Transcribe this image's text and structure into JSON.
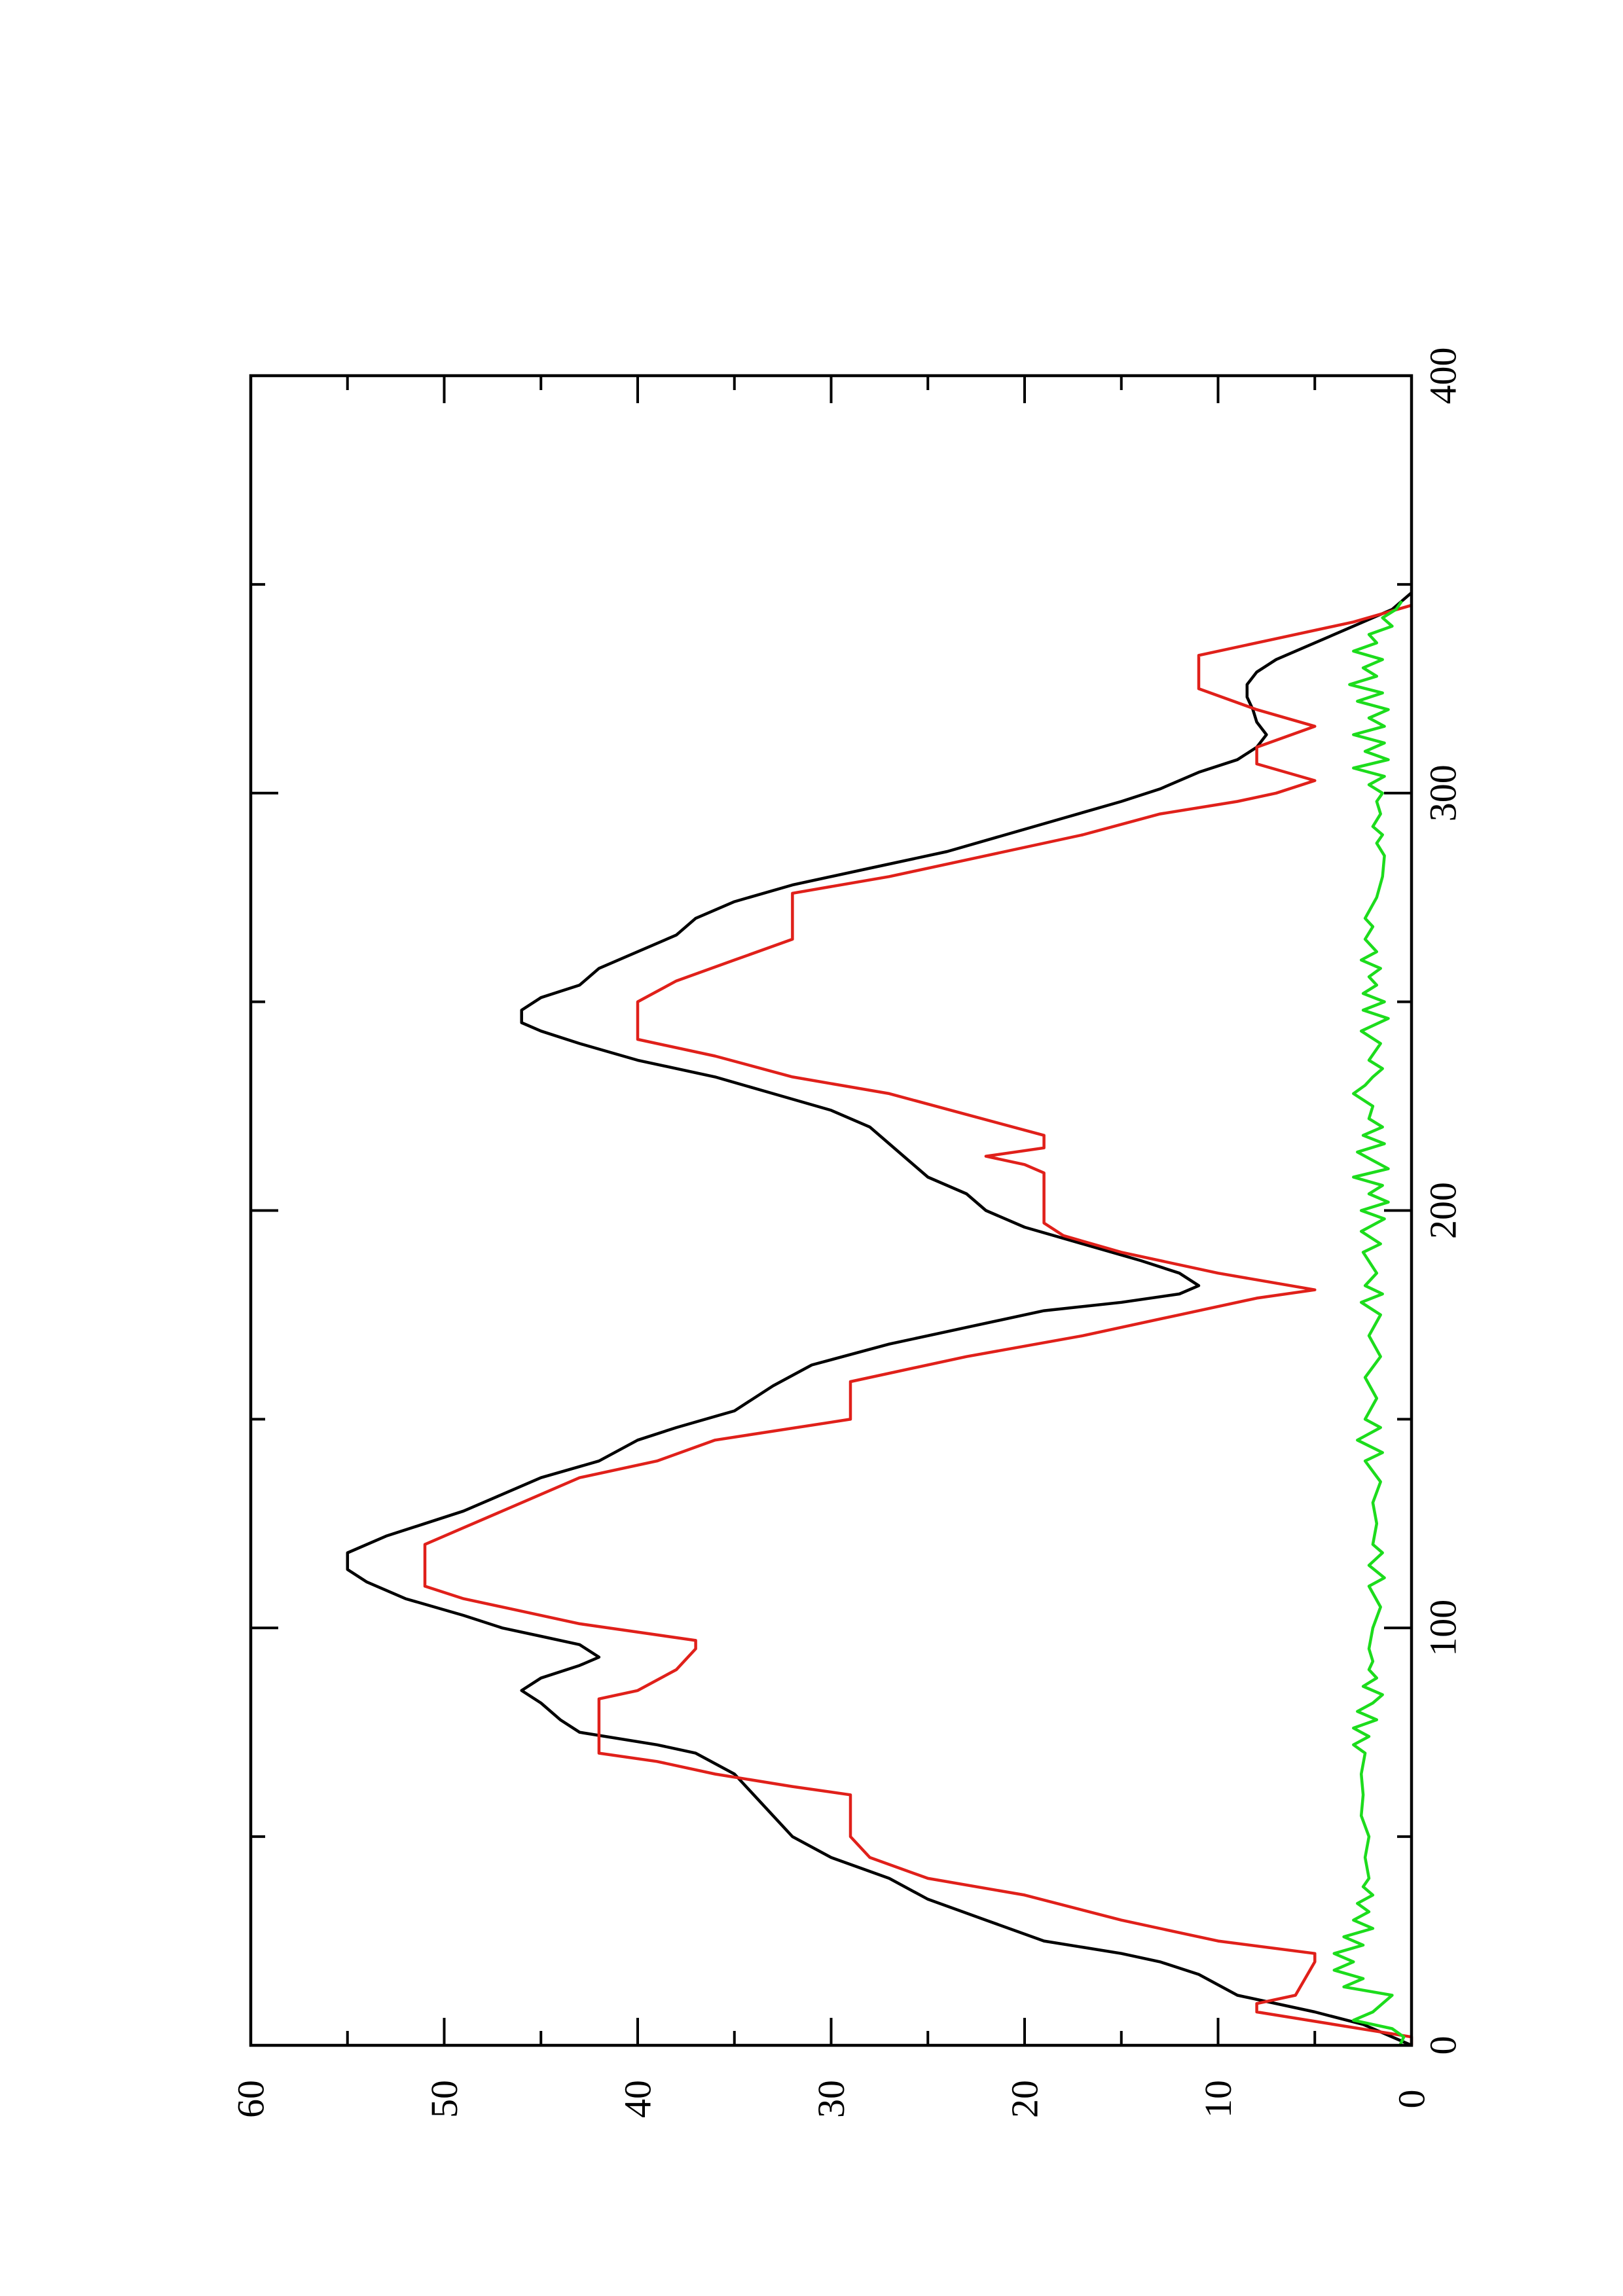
{
  "chart_data": {
    "type": "line",
    "title": "",
    "xlabel": "",
    "ylabel": "",
    "orientation": "rotated-90",
    "xlim": [
      0,
      400
    ],
    "ylim": [
      0,
      60
    ],
    "x_ticks": [
      "0",
      "100",
      "200",
      "300",
      "400"
    ],
    "y_ticks": [
      "0",
      "10",
      "20",
      "30",
      "40",
      "50",
      "60"
    ],
    "grid": false,
    "legend": "none",
    "series": [
      {
        "color": "#000000",
        "points": [
          [
            0,
            0
          ],
          [
            5,
            2.5
          ],
          [
            8,
            5
          ],
          [
            12,
            9
          ],
          [
            17,
            11
          ],
          [
            20,
            13
          ],
          [
            22,
            15
          ],
          [
            25,
            19
          ],
          [
            30,
            22
          ],
          [
            35,
            25
          ],
          [
            40,
            27
          ],
          [
            45,
            30
          ],
          [
            50,
            32
          ],
          [
            55,
            33
          ],
          [
            60,
            34
          ],
          [
            65,
            35
          ],
          [
            70,
            37
          ],
          [
            72,
            39
          ],
          [
            75,
            43
          ],
          [
            78,
            44
          ],
          [
            82,
            45
          ],
          [
            85,
            46
          ],
          [
            88,
            45
          ],
          [
            91,
            43
          ],
          [
            93,
            42
          ],
          [
            96,
            43
          ],
          [
            98,
            45
          ],
          [
            100,
            47
          ],
          [
            103,
            49
          ],
          [
            107,
            52
          ],
          [
            111,
            54
          ],
          [
            114,
            55
          ],
          [
            118,
            55
          ],
          [
            122,
            53
          ],
          [
            125,
            51
          ],
          [
            128,
            49
          ],
          [
            132,
            47
          ],
          [
            136,
            45
          ],
          [
            140,
            42
          ],
          [
            145,
            40
          ],
          [
            148,
            38
          ],
          [
            152,
            35
          ],
          [
            158,
            33
          ],
          [
            163,
            31
          ],
          [
            168,
            27
          ],
          [
            172,
            23
          ],
          [
            176,
            19
          ],
          [
            178,
            15
          ],
          [
            180,
            12
          ],
          [
            182,
            11
          ],
          [
            185,
            12
          ],
          [
            188,
            14
          ],
          [
            192,
            17
          ],
          [
            196,
            20
          ],
          [
            200,
            22
          ],
          [
            204,
            23
          ],
          [
            208,
            25
          ],
          [
            212,
            26
          ],
          [
            216,
            27
          ],
          [
            220,
            28
          ],
          [
            224,
            30
          ],
          [
            228,
            33
          ],
          [
            232,
            36
          ],
          [
            236,
            40
          ],
          [
            240,
            43
          ],
          [
            243,
            45
          ],
          [
            245,
            46
          ],
          [
            248,
            46
          ],
          [
            251,
            45
          ],
          [
            254,
            43
          ],
          [
            258,
            42
          ],
          [
            262,
            40
          ],
          [
            266,
            38
          ],
          [
            270,
            37
          ],
          [
            274,
            35
          ],
          [
            278,
            32
          ],
          [
            282,
            28
          ],
          [
            286,
            24
          ],
          [
            290,
            21
          ],
          [
            294,
            18
          ],
          [
            298,
            15
          ],
          [
            301,
            13
          ],
          [
            305,
            11
          ],
          [
            308,
            9
          ],
          [
            311,
            8
          ],
          [
            314,
            7.5
          ],
          [
            317,
            8
          ],
          [
            320,
            8.2
          ],
          [
            323,
            8.5
          ],
          [
            326,
            8.5
          ],
          [
            329,
            8
          ],
          [
            332,
            7
          ],
          [
            336,
            5
          ],
          [
            340,
            3
          ],
          [
            344,
            1
          ],
          [
            348,
            0
          ]
        ]
      },
      {
        "color": "#e0201a",
        "points": [
          [
            0,
            0
          ],
          [
            2,
            0
          ],
          [
            5,
            4
          ],
          [
            8,
            8
          ],
          [
            10,
            8
          ],
          [
            12,
            6
          ],
          [
            20,
            5
          ],
          [
            22,
            5
          ],
          [
            25,
            10
          ],
          [
            30,
            15
          ],
          [
            36,
            20
          ],
          [
            40,
            25
          ],
          [
            45,
            28
          ],
          [
            50,
            29
          ],
          [
            60,
            29
          ],
          [
            62,
            32
          ],
          [
            65,
            36
          ],
          [
            68,
            39
          ],
          [
            70,
            42
          ],
          [
            78,
            42
          ],
          [
            83,
            42
          ],
          [
            85,
            40
          ],
          [
            90,
            38
          ],
          [
            95,
            37
          ],
          [
            97,
            37
          ],
          [
            99,
            40
          ],
          [
            101,
            43
          ],
          [
            104,
            46
          ],
          [
            107,
            49
          ],
          [
            110,
            51
          ],
          [
            120,
            51
          ],
          [
            124,
            49
          ],
          [
            128,
            47
          ],
          [
            132,
            45
          ],
          [
            136,
            43
          ],
          [
            140,
            39
          ],
          [
            145,
            36
          ],
          [
            150,
            29
          ],
          [
            159,
            29
          ],
          [
            165,
            23
          ],
          [
            170,
            17
          ],
          [
            175,
            12
          ],
          [
            179,
            8
          ],
          [
            181,
            5
          ],
          [
            185,
            10
          ],
          [
            190,
            15
          ],
          [
            194,
            18
          ],
          [
            197,
            19
          ],
          [
            209,
            19
          ],
          [
            211,
            20
          ],
          [
            213,
            22
          ],
          [
            215,
            19
          ],
          [
            218,
            19
          ],
          [
            223,
            23
          ],
          [
            228,
            27
          ],
          [
            232,
            32
          ],
          [
            237,
            36
          ],
          [
            241,
            40
          ],
          [
            250,
            40
          ],
          [
            255,
            38
          ],
          [
            260,
            35
          ],
          [
            265,
            32
          ],
          [
            276,
            32
          ],
          [
            280,
            27
          ],
          [
            285,
            22
          ],
          [
            290,
            17
          ],
          [
            295,
            13
          ],
          [
            298,
            9
          ],
          [
            300,
            7
          ],
          [
            303,
            5
          ],
          [
            307,
            8
          ],
          [
            311,
            8
          ],
          [
            316,
            5
          ],
          [
            320,
            8
          ],
          [
            325,
            11
          ],
          [
            330,
            11
          ],
          [
            333,
            11
          ],
          [
            337,
            7
          ],
          [
            341,
            3
          ],
          [
            345,
            0
          ]
        ]
      },
      {
        "color": "#1cdc1c",
        "points": [
          [
            0,
            0.6
          ],
          [
            2,
            0.4
          ],
          [
            4,
            1
          ],
          [
            6,
            3
          ],
          [
            8,
            2
          ],
          [
            10,
            1.5
          ],
          [
            12,
            1
          ],
          [
            14,
            3.5
          ],
          [
            16,
            2.5
          ],
          [
            18,
            4
          ],
          [
            20,
            3
          ],
          [
            22,
            4
          ],
          [
            24,
            2.5
          ],
          [
            26,
            3.5
          ],
          [
            28,
            2
          ],
          [
            30,
            3
          ],
          [
            32,
            2.2
          ],
          [
            34,
            2.8
          ],
          [
            36,
            2
          ],
          [
            38,
            2.5
          ],
          [
            40,
            2.2
          ],
          [
            45,
            2.4
          ],
          [
            50,
            2.2
          ],
          [
            55,
            2.6
          ],
          [
            60,
            2.5
          ],
          [
            65,
            2.6
          ],
          [
            70,
            2.4
          ],
          [
            72,
            3
          ],
          [
            74,
            2.2
          ],
          [
            76,
            3
          ],
          [
            78,
            1.8
          ],
          [
            80,
            2.8
          ],
          [
            82,
            2
          ],
          [
            84,
            1.5
          ],
          [
            86,
            2.5
          ],
          [
            88,
            1.8
          ],
          [
            90,
            2.2
          ],
          [
            92,
            2
          ],
          [
            95,
            2.2
          ],
          [
            100,
            2
          ],
          [
            105,
            1.6
          ],
          [
            110,
            2.2
          ],
          [
            112,
            1.4
          ],
          [
            115,
            2.2
          ],
          [
            118,
            1.5
          ],
          [
            120,
            2
          ],
          [
            125,
            1.8
          ],
          [
            130,
            2
          ],
          [
            135,
            1.6
          ],
          [
            140,
            2.4
          ],
          [
            142,
            1.5
          ],
          [
            145,
            2.8
          ],
          [
            148,
            1.6
          ],
          [
            150,
            2.4
          ],
          [
            155,
            1.8
          ],
          [
            160,
            2.4
          ],
          [
            165,
            1.6
          ],
          [
            170,
            2.2
          ],
          [
            175,
            1.6
          ],
          [
            178,
            2.6
          ],
          [
            180,
            1.5
          ],
          [
            182,
            2.4
          ],
          [
            185,
            1.8
          ],
          [
            190,
            2.5
          ],
          [
            192,
            1.6
          ],
          [
            195,
            2.6
          ],
          [
            198,
            1.4
          ],
          [
            200,
            2.6
          ],
          [
            202,
            1.2
          ],
          [
            204,
            2.2
          ],
          [
            206,
            1.5
          ],
          [
            208,
            3
          ],
          [
            210,
            1.2
          ],
          [
            212,
            2
          ],
          [
            214,
            2.8
          ],
          [
            216,
            1.4
          ],
          [
            218,
            2.5
          ],
          [
            220,
            1.5
          ],
          [
            222,
            2.2
          ],
          [
            225,
            2
          ],
          [
            228,
            3
          ],
          [
            230,
            2.4
          ],
          [
            232,
            2
          ],
          [
            234,
            1.5
          ],
          [
            236,
            2.2
          ],
          [
            240,
            1.6
          ],
          [
            243,
            2.6
          ],
          [
            246,
            1.2
          ],
          [
            248,
            2.5
          ],
          [
            250,
            1.4
          ],
          [
            252,
            2.5
          ],
          [
            254,
            1.8
          ],
          [
            256,
            2.2
          ],
          [
            258,
            1.6
          ],
          [
            260,
            2.6
          ],
          [
            262,
            1.8
          ],
          [
            265,
            2.4
          ],
          [
            268,
            2
          ],
          [
            270,
            2.4
          ],
          [
            275,
            1.8
          ],
          [
            280,
            1.5
          ],
          [
            285,
            1.4
          ],
          [
            288,
            1.8
          ],
          [
            290,
            1.5
          ],
          [
            292,
            2
          ],
          [
            295,
            1.6
          ],
          [
            298,
            1.8
          ],
          [
            300,
            1.5
          ],
          [
            302,
            2.2
          ],
          [
            304,
            1.4
          ],
          [
            306,
            3
          ],
          [
            308,
            1.2
          ],
          [
            310,
            2.4
          ],
          [
            312,
            1.4
          ],
          [
            314,
            3
          ],
          [
            316,
            1.4
          ],
          [
            318,
            2.2
          ],
          [
            320,
            1.2
          ],
          [
            322,
            2.8
          ],
          [
            324,
            1.5
          ],
          [
            326,
            3.2
          ],
          [
            328,
            1.8
          ],
          [
            330,
            2.5
          ],
          [
            332,
            1.5
          ],
          [
            334,
            3
          ],
          [
            336,
            1.8
          ],
          [
            338,
            2.2
          ],
          [
            340,
            1
          ],
          [
            342,
            1.5
          ],
          [
            344,
            0.8
          ],
          [
            346,
            0.5
          ]
        ]
      }
    ]
  }
}
